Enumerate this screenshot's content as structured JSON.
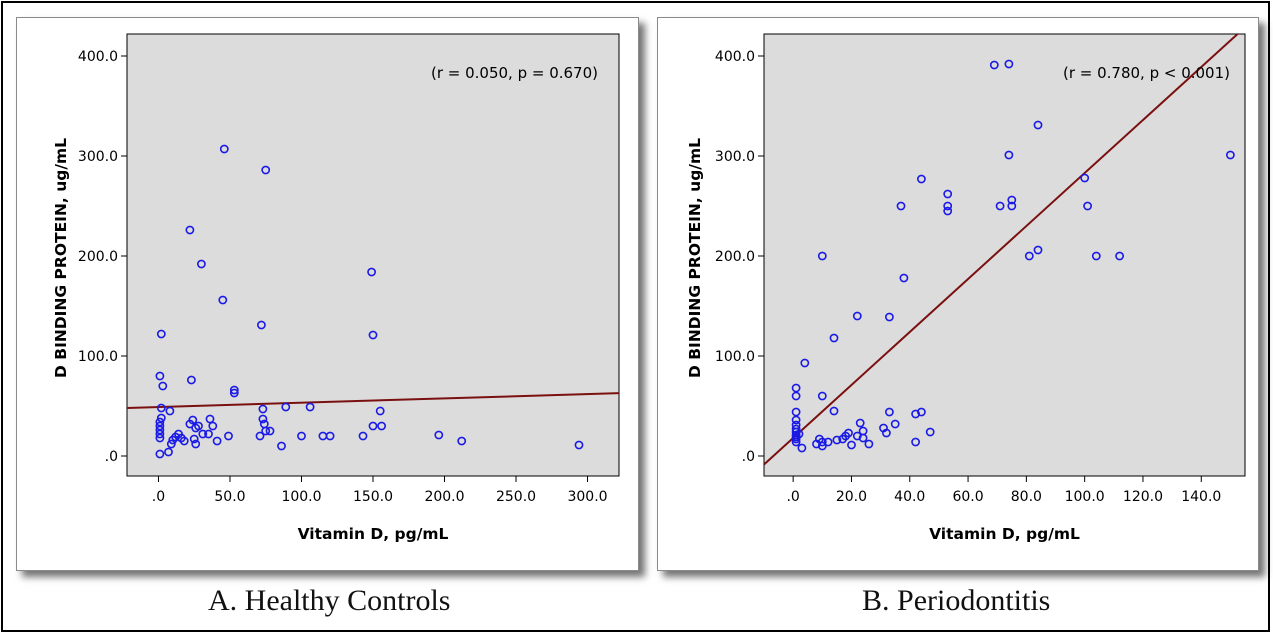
{
  "chart_data": [
    {
      "type": "scatter",
      "panel_caption": "A.  Healthy Controls",
      "xlabel": "Vitamin D, pg/mL",
      "ylabel": "D BINDING PROTEIN, ug/mL",
      "annotation": "(r = 0.050, p = 0.670)",
      "xlim": [
        -22,
        322
      ],
      "ylim": [
        -20,
        422
      ],
      "xticks": [
        0,
        50,
        100,
        150,
        200,
        250,
        300
      ],
      "xtick_labels": [
        ".0",
        "50.0",
        "100.0",
        "150.0",
        "200.0",
        "250.0",
        "300.0"
      ],
      "yticks": [
        0,
        100,
        200,
        300,
        400
      ],
      "ytick_labels": [
        ".0",
        "100.0",
        "200.0",
        "300.0",
        "400.0"
      ],
      "grid": false,
      "background": "#dcdcdc",
      "point_color": "#1a1ae6",
      "fit_line_color": "#7a1010",
      "fit_line": {
        "intercept": 49,
        "slope": 0.043
      },
      "points": [
        [
          1,
          2
        ],
        [
          1,
          18
        ],
        [
          1,
          22
        ],
        [
          1,
          26
        ],
        [
          1,
          30
        ],
        [
          1,
          34
        ],
        [
          1,
          80
        ],
        [
          2,
          122
        ],
        [
          2,
          38
        ],
        [
          2,
          48
        ],
        [
          3,
          70
        ],
        [
          7,
          4
        ],
        [
          8,
          45
        ],
        [
          9,
          12
        ],
        [
          10,
          16
        ],
        [
          12,
          19
        ],
        [
          14,
          22
        ],
        [
          16,
          18
        ],
        [
          18,
          15
        ],
        [
          22,
          226
        ],
        [
          22,
          32
        ],
        [
          23,
          76
        ],
        [
          24,
          36
        ],
        [
          25,
          17
        ],
        [
          26,
          28
        ],
        [
          26,
          12
        ],
        [
          28,
          30
        ],
        [
          30,
          192
        ],
        [
          31,
          22
        ],
        [
          35,
          22
        ],
        [
          36,
          37
        ],
        [
          38,
          30
        ],
        [
          41,
          15
        ],
        [
          45,
          156
        ],
        [
          46,
          307
        ],
        [
          49,
          20
        ],
        [
          53,
          63
        ],
        [
          53,
          66
        ],
        [
          71,
          20
        ],
        [
          72,
          131
        ],
        [
          73,
          47
        ],
        [
          73,
          37
        ],
        [
          74,
          32
        ],
        [
          75,
          25
        ],
        [
          75,
          286
        ],
        [
          78,
          25
        ],
        [
          86,
          10
        ],
        [
          89,
          49
        ],
        [
          100,
          20
        ],
        [
          106,
          49
        ],
        [
          115,
          20
        ],
        [
          120,
          20
        ],
        [
          143,
          20
        ],
        [
          149,
          184
        ],
        [
          150,
          121
        ],
        [
          150,
          30
        ],
        [
          155,
          45
        ],
        [
          156,
          30
        ],
        [
          196,
          21
        ],
        [
          212,
          15
        ],
        [
          294,
          11
        ]
      ]
    },
    {
      "type": "scatter",
      "panel_caption": "B.  Periodontitis",
      "xlabel": "Vitamin D, pg/mL",
      "ylabel": "D BINDING PROTEIN, ug/mL",
      "annotation": "(r = 0.780, p < 0.001)",
      "xlim": [
        -10,
        155
      ],
      "ylim": [
        -20,
        422
      ],
      "xticks": [
        0,
        20,
        40,
        60,
        80,
        100,
        120,
        140
      ],
      "xtick_labels": [
        ".0",
        "20.0",
        "40.0",
        "60.0",
        "80.0",
        "100.0",
        "120.0",
        "140.0"
      ],
      "yticks": [
        0,
        100,
        200,
        300,
        400
      ],
      "ytick_labels": [
        ".0",
        "100.0",
        "200.0",
        "300.0",
        "400.0"
      ],
      "grid": false,
      "background": "#dcdcdc",
      "point_color": "#1a1ae6",
      "fit_line_color": "#7a1010",
      "fit_line": {
        "intercept": 18,
        "slope": 2.65
      },
      "points": [
        [
          1,
          14
        ],
        [
          1,
          17
        ],
        [
          1,
          19
        ],
        [
          1,
          21
        ],
        [
          1,
          24
        ],
        [
          1,
          27
        ],
        [
          1,
          31
        ],
        [
          1,
          36
        ],
        [
          1,
          44
        ],
        [
          1,
          60
        ],
        [
          1,
          68
        ],
        [
          2,
          22
        ],
        [
          3,
          8
        ],
        [
          4,
          93
        ],
        [
          8,
          12
        ],
        [
          9,
          17
        ],
        [
          10,
          10
        ],
        [
          10,
          14
        ],
        [
          10,
          200
        ],
        [
          10,
          60
        ],
        [
          12,
          14
        ],
        [
          14,
          118
        ],
        [
          14,
          45
        ],
        [
          15,
          16
        ],
        [
          17,
          17
        ],
        [
          18,
          20
        ],
        [
          19,
          23
        ],
        [
          20,
          11
        ],
        [
          22,
          140
        ],
        [
          22,
          20
        ],
        [
          23,
          33
        ],
        [
          24,
          25
        ],
        [
          24,
          18
        ],
        [
          26,
          12
        ],
        [
          31,
          28
        ],
        [
          32,
          23
        ],
        [
          33,
          139
        ],
        [
          33,
          44
        ],
        [
          35,
          32
        ],
        [
          37,
          250
        ],
        [
          38,
          178
        ],
        [
          42,
          14
        ],
        [
          42,
          42
        ],
        [
          44,
          44
        ],
        [
          44,
          277
        ],
        [
          47,
          24
        ],
        [
          53,
          262
        ],
        [
          53,
          250
        ],
        [
          53,
          245
        ],
        [
          69,
          391
        ],
        [
          71,
          250
        ],
        [
          74,
          301
        ],
        [
          74,
          392
        ],
        [
          75,
          250
        ],
        [
          75,
          256
        ],
        [
          81,
          200
        ],
        [
          84,
          206
        ],
        [
          84,
          331
        ],
        [
          100,
          278
        ],
        [
          101,
          250
        ],
        [
          104,
          200
        ],
        [
          112,
          200
        ],
        [
          150,
          301
        ]
      ]
    }
  ]
}
